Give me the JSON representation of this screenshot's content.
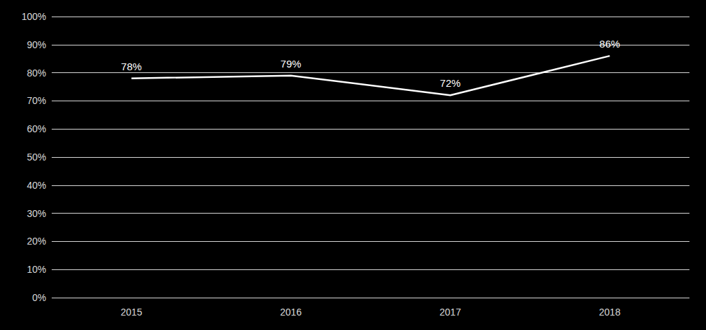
{
  "chart_data": {
    "type": "line",
    "categories": [
      "2015",
      "2016",
      "2017",
      "2018"
    ],
    "values": [
      78,
      79,
      72,
      86
    ],
    "value_labels": [
      "78%",
      "79%",
      "72%",
      "86%"
    ],
    "color": "#ffffff",
    "ylim": [
      0,
      100
    ],
    "yticks": [
      {
        "value": 0,
        "label": "0%"
      },
      {
        "value": 10,
        "label": "10%"
      },
      {
        "value": 20,
        "label": "20%"
      },
      {
        "value": 30,
        "label": "30%"
      },
      {
        "value": 40,
        "label": "40%"
      },
      {
        "value": 50,
        "label": "50%"
      },
      {
        "value": 60,
        "label": "60%"
      },
      {
        "value": 70,
        "label": "70%"
      },
      {
        "value": 80,
        "label": "80%"
      },
      {
        "value": 90,
        "label": "90%"
      },
      {
        "value": 100,
        "label": "100%"
      }
    ],
    "grid": true,
    "data_labels": true
  }
}
